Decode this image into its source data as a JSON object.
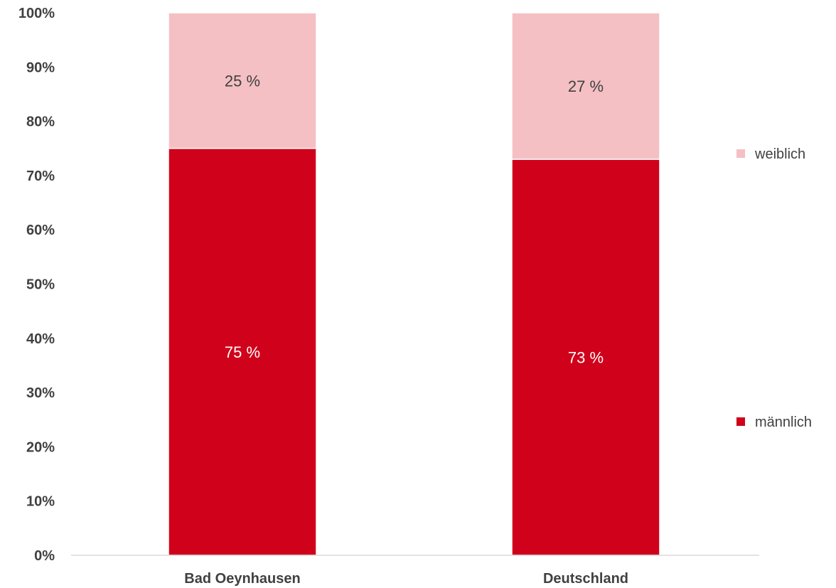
{
  "chart_data": {
    "type": "bar",
    "stacked": true,
    "percent": true,
    "categories": [
      "Bad Oeynhausen",
      "Deutschland"
    ],
    "series": [
      {
        "name": "männlich",
        "values": [
          75,
          73
        ],
        "labels": [
          "75 %",
          "73 %"
        ],
        "color": "#d0021b",
        "label_color": "#ffffff"
      },
      {
        "name": "weiblich",
        "values": [
          25,
          27
        ],
        "labels": [
          "25 %",
          "27 %"
        ],
        "color": "#f4c0c4",
        "label_color": "#404040"
      }
    ],
    "y_ticks": [
      "0%",
      "10%",
      "20%",
      "30%",
      "40%",
      "50%",
      "60%",
      "70%",
      "80%",
      "90%",
      "100%"
    ],
    "ylim": [
      0,
      100
    ],
    "grid": false,
    "legend": {
      "position": "right",
      "order": [
        "weiblich",
        "männlich"
      ]
    },
    "axis_color": "#d9d9d9"
  }
}
